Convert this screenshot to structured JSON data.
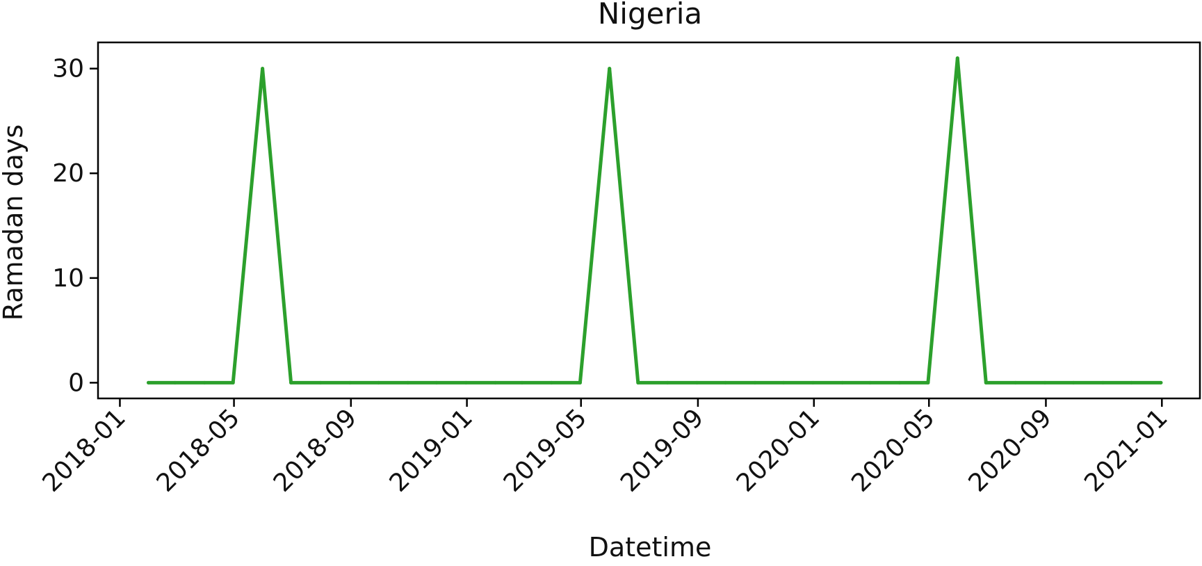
{
  "chart_data": {
    "type": "line",
    "title": "Nigeria",
    "xlabel": "Datetime",
    "ylabel": "Ramadan days",
    "xlim": [
      "2017-12-09",
      "2021-02-10"
    ],
    "ylim": [
      -1.5,
      32.5
    ],
    "grid": false,
    "x_ticks": [
      "2018-01",
      "2018-05",
      "2018-09",
      "2019-01",
      "2019-05",
      "2019-09",
      "2020-01",
      "2020-05",
      "2020-09",
      "2021-01"
    ],
    "y_ticks": [
      0,
      10,
      20,
      30
    ],
    "series": [
      {
        "color": "#2ca02c",
        "x": [
          "2018-01-31",
          "2018-02-28",
          "2018-03-31",
          "2018-04-30",
          "2018-05-31",
          "2018-06-30",
          "2018-07-31",
          "2018-08-31",
          "2018-09-30",
          "2018-10-31",
          "2018-11-30",
          "2018-12-31",
          "2019-01-31",
          "2019-02-28",
          "2019-03-31",
          "2019-04-30",
          "2019-05-31",
          "2019-06-30",
          "2019-07-31",
          "2019-08-31",
          "2019-09-30",
          "2019-10-31",
          "2019-11-30",
          "2019-12-31",
          "2020-01-31",
          "2020-02-29",
          "2020-03-31",
          "2020-04-30",
          "2020-05-31",
          "2020-06-30",
          "2020-07-31",
          "2020-08-31",
          "2020-09-30",
          "2020-10-31",
          "2020-11-30",
          "2020-12-31"
        ],
        "values": [
          0,
          0,
          0,
          0,
          30,
          0,
          0,
          0,
          0,
          0,
          0,
          0,
          0,
          0,
          0,
          0,
          30,
          0,
          0,
          0,
          0,
          0,
          0,
          0,
          0,
          0,
          0,
          0,
          31,
          0,
          0,
          0,
          0,
          0,
          0,
          0
        ]
      }
    ]
  }
}
